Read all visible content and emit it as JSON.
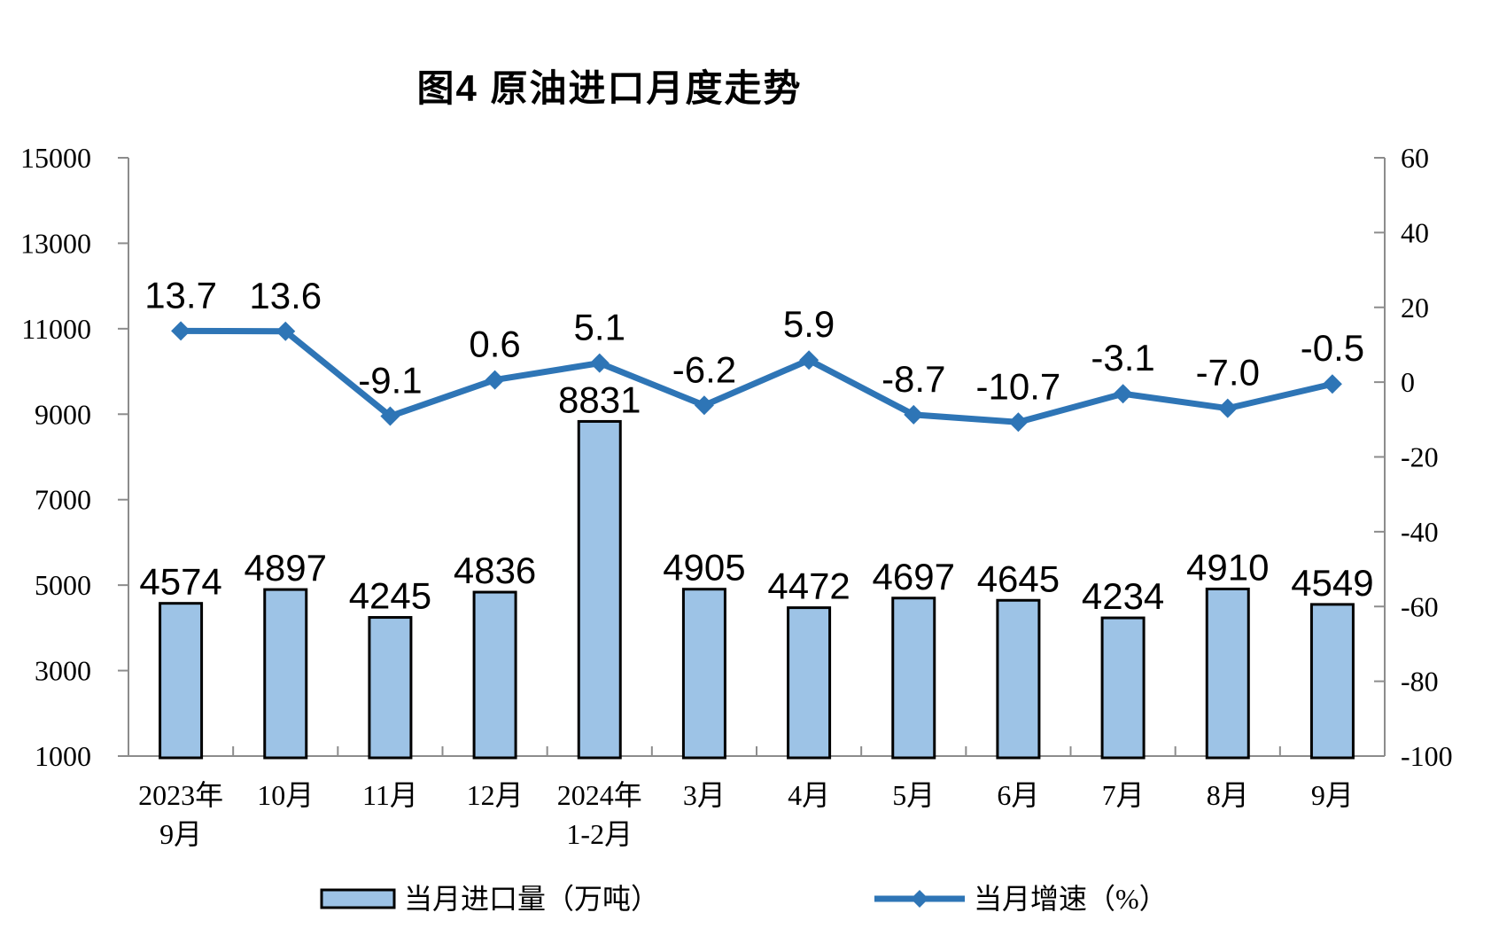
{
  "chart_data": {
    "type": "bar",
    "subtype": "bar-line combo, dual axis",
    "title": "图4 原油进口月度走势",
    "categories": [
      [
        "2023年",
        "9月"
      ],
      [
        "10月"
      ],
      [
        "11月"
      ],
      [
        "12月"
      ],
      [
        "2024年",
        "1-2月"
      ],
      [
        "3月"
      ],
      [
        "4月"
      ],
      [
        "5月"
      ],
      [
        "6月"
      ],
      [
        "7月"
      ],
      [
        "8月"
      ],
      [
        "9月"
      ]
    ],
    "series": [
      {
        "name": "当月进口量（万吨）",
        "type": "bar",
        "axis": "left",
        "values": [
          4574,
          4897,
          4245,
          4836,
          8831,
          4905,
          4472,
          4697,
          4645,
          4234,
          4910,
          4549
        ],
        "labels": [
          "4574",
          "4897",
          "4245",
          "4836",
          "8831",
          "4905",
          "4472",
          "4697",
          "4645",
          "4234",
          "4910",
          "4549"
        ],
        "fill": "#9DC3E6",
        "stroke": "#000000"
      },
      {
        "name": "当月增速（%）",
        "type": "line",
        "axis": "right",
        "values": [
          13.7,
          13.6,
          -9.1,
          0.6,
          5.1,
          -6.2,
          5.9,
          -8.7,
          -10.7,
          -3.1,
          -7.0,
          -0.5
        ],
        "labels": [
          "13.7",
          "13.6",
          "-9.1",
          "0.6",
          "5.1",
          "-6.2",
          "5.9",
          "-8.7",
          "-10.7",
          "-3.1",
          "-7.0",
          "-0.5"
        ],
        "color": "#2E75B6",
        "marker": "diamond"
      }
    ],
    "left_axis": {
      "min": 1000,
      "max": 15000,
      "step": 2000,
      "ticks": [
        "15000",
        "13000",
        "11000",
        "9000",
        "7000",
        "5000",
        "3000",
        "1000"
      ]
    },
    "right_axis": {
      "min": -100,
      "max": 60,
      "step": 20,
      "ticks": [
        "60",
        "40",
        "20",
        "0",
        "-20",
        "-40",
        "-60",
        "-80",
        "-100"
      ]
    },
    "grid": "off",
    "legend_position": "bottom",
    "colors": {
      "axis": "#8C8C8C",
      "text": "#000000",
      "background": "#FFFFFF"
    }
  }
}
